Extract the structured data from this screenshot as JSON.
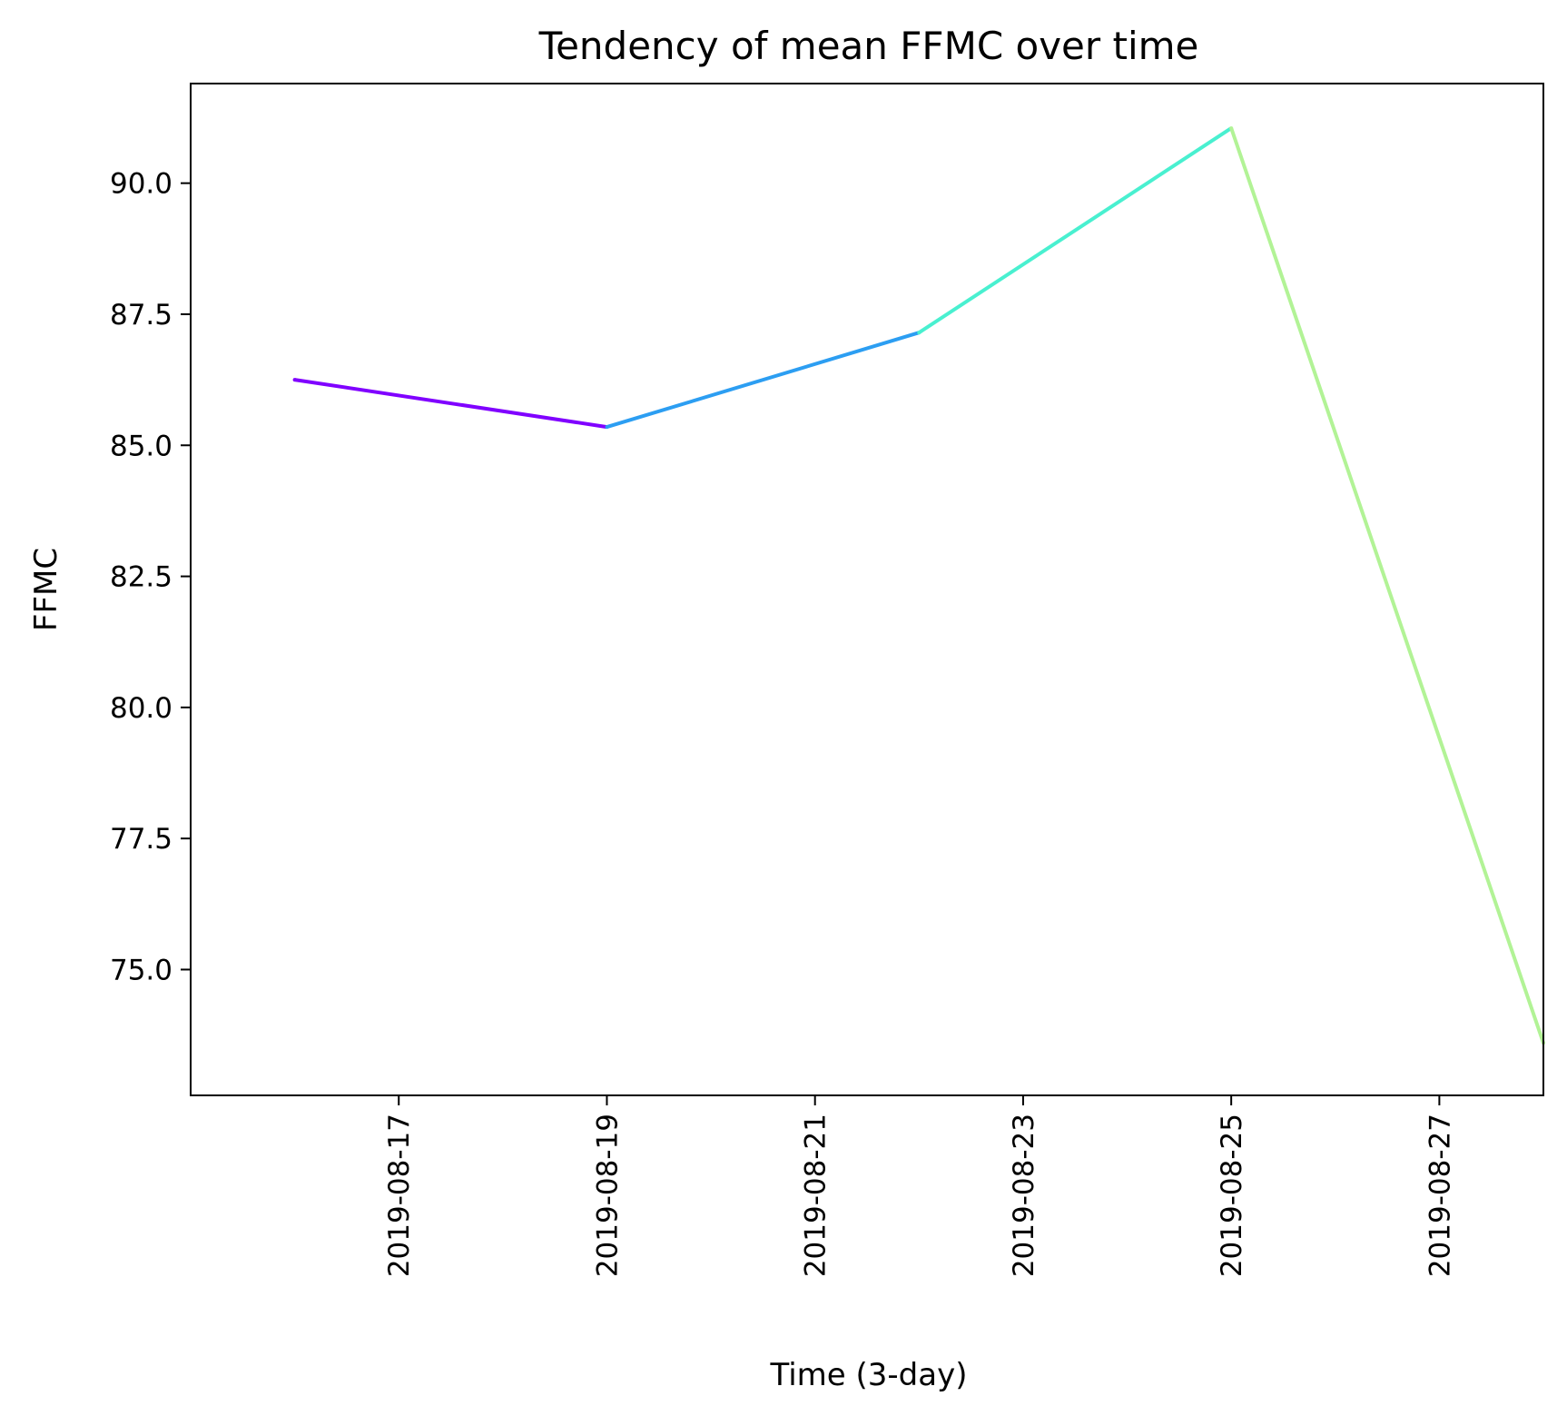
{
  "chart_data": {
    "type": "line",
    "title": "Tendency of mean FFMC over time",
    "xlabel": "Time (3-day)",
    "ylabel": "FFMC",
    "x": [
      "2019-08-16",
      "2019-08-19",
      "2019-08-22",
      "2019-08-25",
      "2019-08-28"
    ],
    "values": [
      86.25,
      85.35,
      87.15,
      91.05,
      73.6
    ],
    "segment_colors": [
      "#8000ff",
      "#2c9ef2",
      "#49f0d0",
      "#b2f396"
    ],
    "xticks": [
      "2019-08-17",
      "2019-08-19",
      "2019-08-21",
      "2019-08-23",
      "2019-08-25",
      "2019-08-27"
    ],
    "yticks": [
      "75.0",
      "77.5",
      "80.0",
      "82.5",
      "85.0",
      "87.5",
      "90.0"
    ],
    "xlim": [
      "2019-08-15",
      "2019-08-28"
    ],
    "ylim": [
      72.6,
      91.9
    ],
    "grid": false,
    "legend": "none"
  }
}
